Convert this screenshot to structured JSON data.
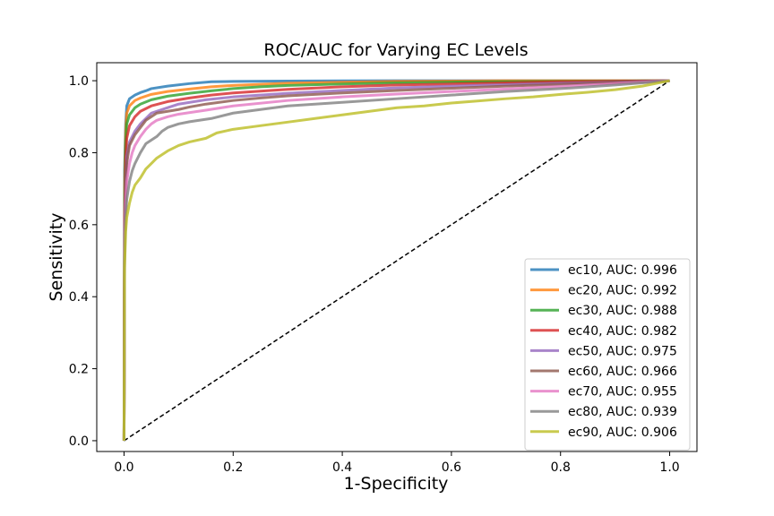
{
  "chart_data": {
    "type": "line",
    "title": "ROC/AUC for Varying EC Levels",
    "xlabel": "1-Specificity",
    "ylabel": "Sensitivity",
    "xlim": [
      -0.05,
      1.05
    ],
    "ylim": [
      -0.03,
      1.05
    ],
    "xticks": [
      "0.0",
      "0.2",
      "0.4",
      "0.6",
      "0.8",
      "1.0"
    ],
    "yticks": [
      "0.0",
      "0.2",
      "0.4",
      "0.6",
      "0.8",
      "1.0"
    ],
    "grid": false,
    "legend_position": "lower-right",
    "diagonal": {
      "x": [
        0,
        1
      ],
      "y": [
        0,
        1
      ],
      "style": "dashed",
      "color": "#000000"
    },
    "series": [
      {
        "name": "ec10, AUC: 0.996",
        "color": "#1f77b4",
        "x": [
          0,
          0.001,
          0.003,
          0.005,
          0.01,
          0.02,
          0.03,
          0.04,
          0.05,
          0.08,
          0.12,
          0.16,
          0.2,
          0.3,
          0.5,
          1.0
        ],
        "y": [
          0,
          0.75,
          0.88,
          0.93,
          0.95,
          0.96,
          0.967,
          0.972,
          0.978,
          0.985,
          0.992,
          0.997,
          0.998,
          0.999,
          1.0,
          1.0
        ]
      },
      {
        "name": "ec20, AUC: 0.992",
        "color": "#ff7f0e",
        "x": [
          0,
          0.001,
          0.003,
          0.005,
          0.01,
          0.02,
          0.03,
          0.05,
          0.08,
          0.12,
          0.16,
          0.2,
          0.25,
          0.3,
          0.4,
          0.5,
          0.7,
          1.0
        ],
        "y": [
          0,
          0.7,
          0.86,
          0.91,
          0.93,
          0.945,
          0.952,
          0.962,
          0.97,
          0.977,
          0.983,
          0.987,
          0.99,
          0.993,
          0.996,
          0.998,
          1.0,
          1.0
        ]
      },
      {
        "name": "ec30, AUC: 0.988",
        "color": "#2ca02c",
        "x": [
          0,
          0.001,
          0.003,
          0.005,
          0.01,
          0.02,
          0.03,
          0.05,
          0.08,
          0.12,
          0.16,
          0.2,
          0.25,
          0.3,
          0.4,
          0.5,
          0.6,
          0.8,
          1.0
        ],
        "y": [
          0,
          0.68,
          0.83,
          0.88,
          0.905,
          0.925,
          0.935,
          0.947,
          0.957,
          0.965,
          0.972,
          0.978,
          0.983,
          0.987,
          0.991,
          0.994,
          0.996,
          0.998,
          1.0
        ]
      },
      {
        "name": "ec40, AUC: 0.982",
        "color": "#d62728",
        "x": [
          0,
          0.001,
          0.003,
          0.005,
          0.01,
          0.02,
          0.03,
          0.05,
          0.08,
          0.12,
          0.16,
          0.2,
          0.3,
          0.4,
          0.5,
          0.6,
          0.7,
          0.8,
          1.0
        ],
        "y": [
          0,
          0.62,
          0.78,
          0.84,
          0.875,
          0.9,
          0.915,
          0.93,
          0.942,
          0.952,
          0.96,
          0.966,
          0.976,
          0.983,
          0.988,
          0.991,
          0.994,
          0.997,
          1.0
        ]
      },
      {
        "name": "ec50, AUC: 0.975",
        "color": "#9467bd",
        "x": [
          0,
          0.001,
          0.003,
          0.005,
          0.01,
          0.02,
          0.03,
          0.04,
          0.05,
          0.08,
          0.1,
          0.15,
          0.2,
          0.3,
          0.4,
          0.5,
          0.6,
          0.7,
          0.8,
          0.9,
          1.0
        ],
        "y": [
          0,
          0.58,
          0.72,
          0.79,
          0.83,
          0.86,
          0.88,
          0.895,
          0.91,
          0.925,
          0.935,
          0.947,
          0.955,
          0.965,
          0.973,
          0.98,
          0.985,
          0.989,
          0.993,
          0.996,
          1.0
        ]
      },
      {
        "name": "ec60, AUC: 0.966",
        "color": "#8c564b",
        "x": [
          0,
          0.001,
          0.003,
          0.005,
          0.01,
          0.02,
          0.03,
          0.04,
          0.05,
          0.06,
          0.08,
          0.1,
          0.12,
          0.15,
          0.2,
          0.25,
          0.3,
          0.4,
          0.5,
          0.6,
          0.7,
          0.8,
          0.9,
          1.0
        ],
        "y": [
          0,
          0.55,
          0.7,
          0.77,
          0.82,
          0.85,
          0.87,
          0.89,
          0.9,
          0.91,
          0.915,
          0.92,
          0.927,
          0.935,
          0.945,
          0.952,
          0.958,
          0.966,
          0.973,
          0.979,
          0.985,
          0.99,
          0.995,
          1.0
        ]
      },
      {
        "name": "ec70, AUC: 0.955",
        "color": "#e377c2",
        "x": [
          0,
          0.001,
          0.003,
          0.005,
          0.01,
          0.015,
          0.02,
          0.03,
          0.04,
          0.05,
          0.06,
          0.08,
          0.1,
          0.15,
          0.2,
          0.3,
          0.4,
          0.5,
          0.6,
          0.7,
          0.8,
          0.9,
          1.0
        ],
        "y": [
          0,
          0.52,
          0.66,
          0.72,
          0.77,
          0.8,
          0.82,
          0.845,
          0.865,
          0.88,
          0.89,
          0.9,
          0.907,
          0.918,
          0.93,
          0.945,
          0.955,
          0.963,
          0.97,
          0.977,
          0.984,
          0.992,
          1.0
        ]
      },
      {
        "name": "ec80, AUC: 0.939",
        "color": "#7f7f7f",
        "x": [
          0,
          0.001,
          0.003,
          0.005,
          0.01,
          0.015,
          0.02,
          0.03,
          0.04,
          0.05,
          0.06,
          0.07,
          0.08,
          0.1,
          0.12,
          0.16,
          0.2,
          0.25,
          0.3,
          0.4,
          0.5,
          0.6,
          0.7,
          0.8,
          0.9,
          1.0
        ],
        "y": [
          0,
          0.5,
          0.62,
          0.67,
          0.72,
          0.75,
          0.77,
          0.8,
          0.825,
          0.835,
          0.845,
          0.86,
          0.87,
          0.88,
          0.886,
          0.895,
          0.91,
          0.92,
          0.93,
          0.94,
          0.95,
          0.96,
          0.97,
          0.978,
          0.988,
          1.0
        ]
      },
      {
        "name": "ec90, AUC: 0.906",
        "color": "#bcbd22",
        "x": [
          0,
          0.001,
          0.003,
          0.005,
          0.01,
          0.015,
          0.02,
          0.03,
          0.04,
          0.05,
          0.06,
          0.08,
          0.1,
          0.12,
          0.15,
          0.17,
          0.2,
          0.25,
          0.3,
          0.35,
          0.4,
          0.45,
          0.5,
          0.55,
          0.6,
          0.65,
          0.7,
          0.75,
          0.8,
          0.85,
          0.9,
          0.95,
          1.0
        ],
        "y": [
          0,
          0.48,
          0.58,
          0.62,
          0.66,
          0.69,
          0.71,
          0.73,
          0.755,
          0.77,
          0.785,
          0.805,
          0.82,
          0.83,
          0.84,
          0.855,
          0.865,
          0.875,
          0.885,
          0.895,
          0.905,
          0.915,
          0.925,
          0.93,
          0.938,
          0.944,
          0.95,
          0.955,
          0.962,
          0.968,
          0.975,
          0.985,
          1.0
        ]
      }
    ]
  }
}
